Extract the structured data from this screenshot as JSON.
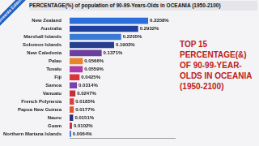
{
  "chart_data": {
    "type": "bar",
    "orientation": "horizontal",
    "title": "PERCENTAGE(%) of population of 90-99-Years-Olds in OCEANIA (1950-2100)",
    "subtitle": "TOP 15 PERCENTAGE(&) OF 90-99-YEAR-OLDS IN OCEANIA (1950-2100)",
    "annotations": [
      "Oceania Edition"
    ],
    "categories": [
      "New Zealand",
      "Australia",
      "Marshall Islands",
      "Solomon Islands",
      "New Caledonia",
      "Palau",
      "Tuvalu",
      "Fiji",
      "Samoa",
      "Vanuatu",
      "French Polynesia",
      "Papua New Guinea",
      "Nauru",
      "Guam",
      "Northern Mariana Islands"
    ],
    "values": [
      0.3358,
      0.2932,
      0.2205,
      0.1903,
      0.1371,
      0.0566,
      0.0559,
      0.0425,
      0.0314,
      0.0247,
      0.0185,
      0.0177,
      0.0151,
      0.0102,
      0.0064
    ],
    "value_labels": [
      "0.3358%",
      "0.2932%",
      "0.2205%",
      "0.1903%",
      "0.1371%",
      "0.0566%",
      "0.0559%",
      "0.0425%",
      "0.0314%",
      "0.0247%",
      "0.0185%",
      "0.0177%",
      "0.0151%",
      "0.0102%",
      "0.0064%"
    ],
    "colors": [
      "#2a6fdb",
      "#1f3f9f",
      "#3a7bd5",
      "#26408f",
      "#6b3fa0",
      "#e8842c",
      "#b03aa8",
      "#d8343a",
      "#7a3fb0",
      "#c62f3a",
      "#d9403f",
      "#e0562a",
      "#2b2f7a",
      "#cc2b36",
      "#3b6fd0"
    ],
    "xlim": [
      0,
      0.45
    ],
    "xticks": [],
    "tick_labels": "y",
    "grid": false,
    "data_labels": true
  }
}
